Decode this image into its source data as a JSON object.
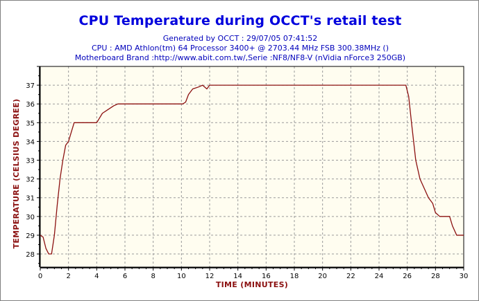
{
  "header": {
    "title": "CPU Temperature during OCCT's retail test",
    "generated": "Generated by OCCT : 29/07/05 07:41:52",
    "cpu": "CPU : AMD Athlon(tm) 64 Processor 3400+ @ 2703.44 MHz FSB 300.38MHz ()",
    "motherboard": "Motherboard Brand :http://www.abit.com.tw/,Serie :NF8/NF8-V (nVidia nForce3 250GB)"
  },
  "colors": {
    "title": "#0000dd",
    "subtitle": "#0000bb",
    "line": "#8b1010",
    "axis_title": "#8b1010",
    "plot_bg": "#fffdf0",
    "grid": "#9a9a9a"
  },
  "chart_data": {
    "type": "line",
    "title": "CPU Temperature during OCCT's retail test",
    "xlabel": "TIME (MINUTES)",
    "ylabel": "TEMPERATURE (CELSIUS DEGREE)",
    "xlim": [
      0,
      30
    ],
    "ylim": [
      27.3,
      38
    ],
    "x_ticks": [
      0,
      2,
      4,
      6,
      8,
      10,
      12,
      14,
      16,
      18,
      20,
      22,
      24,
      26,
      28,
      30
    ],
    "y_ticks": [
      28,
      29,
      30,
      31,
      32,
      33,
      34,
      35,
      36,
      37
    ],
    "grid": true,
    "series": [
      {
        "x": [
          0,
          0.2,
          0.4,
          0.6,
          0.8,
          1.0,
          1.2,
          1.4,
          1.6,
          1.8,
          2.0,
          2.2,
          2.4,
          2.6,
          3.0,
          3.5,
          4.0,
          4.4,
          4.8,
          5.2,
          5.5,
          6.0,
          8.0,
          9.8,
          10.1,
          10.3,
          10.5,
          10.8,
          11.2,
          11.5,
          11.8,
          12.0,
          14.0,
          20.0,
          25.9,
          26.1,
          26.3,
          26.6,
          26.9,
          27.2,
          27.5,
          27.8,
          28.0,
          28.3,
          28.7,
          29.0,
          29.2,
          29.5,
          30.0
        ],
        "y": [
          29.0,
          28.9,
          28.3,
          28.0,
          28.0,
          29.0,
          30.6,
          32.0,
          33.0,
          33.8,
          34.0,
          34.5,
          35.0,
          35.0,
          35.0,
          35.0,
          35.0,
          35.5,
          35.7,
          35.9,
          36.0,
          36.0,
          36.0,
          36.0,
          36.0,
          36.1,
          36.5,
          36.8,
          36.9,
          37.0,
          36.8,
          37.0,
          37.0,
          37.0,
          37.0,
          36.4,
          35.0,
          33.0,
          32.0,
          31.5,
          31.0,
          30.7,
          30.2,
          30.0,
          30.0,
          30.0,
          29.5,
          29.0,
          29.0
        ]
      }
    ]
  }
}
